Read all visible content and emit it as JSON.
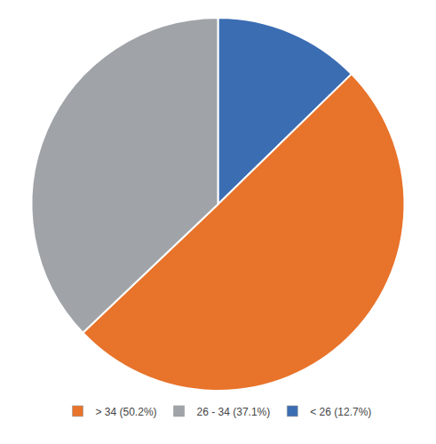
{
  "chart_data": {
    "type": "pie",
    "categories": [
      "< 26 (12.7%)",
      "> 34 (50.2%)",
      "26 - 34 (37.1%)"
    ],
    "values": [
      12.7,
      50.2,
      37.1
    ],
    "colors": [
      "#3B6DB3",
      "#E8732A",
      "#A0A4A8"
    ],
    "legend": "bottom"
  }
}
